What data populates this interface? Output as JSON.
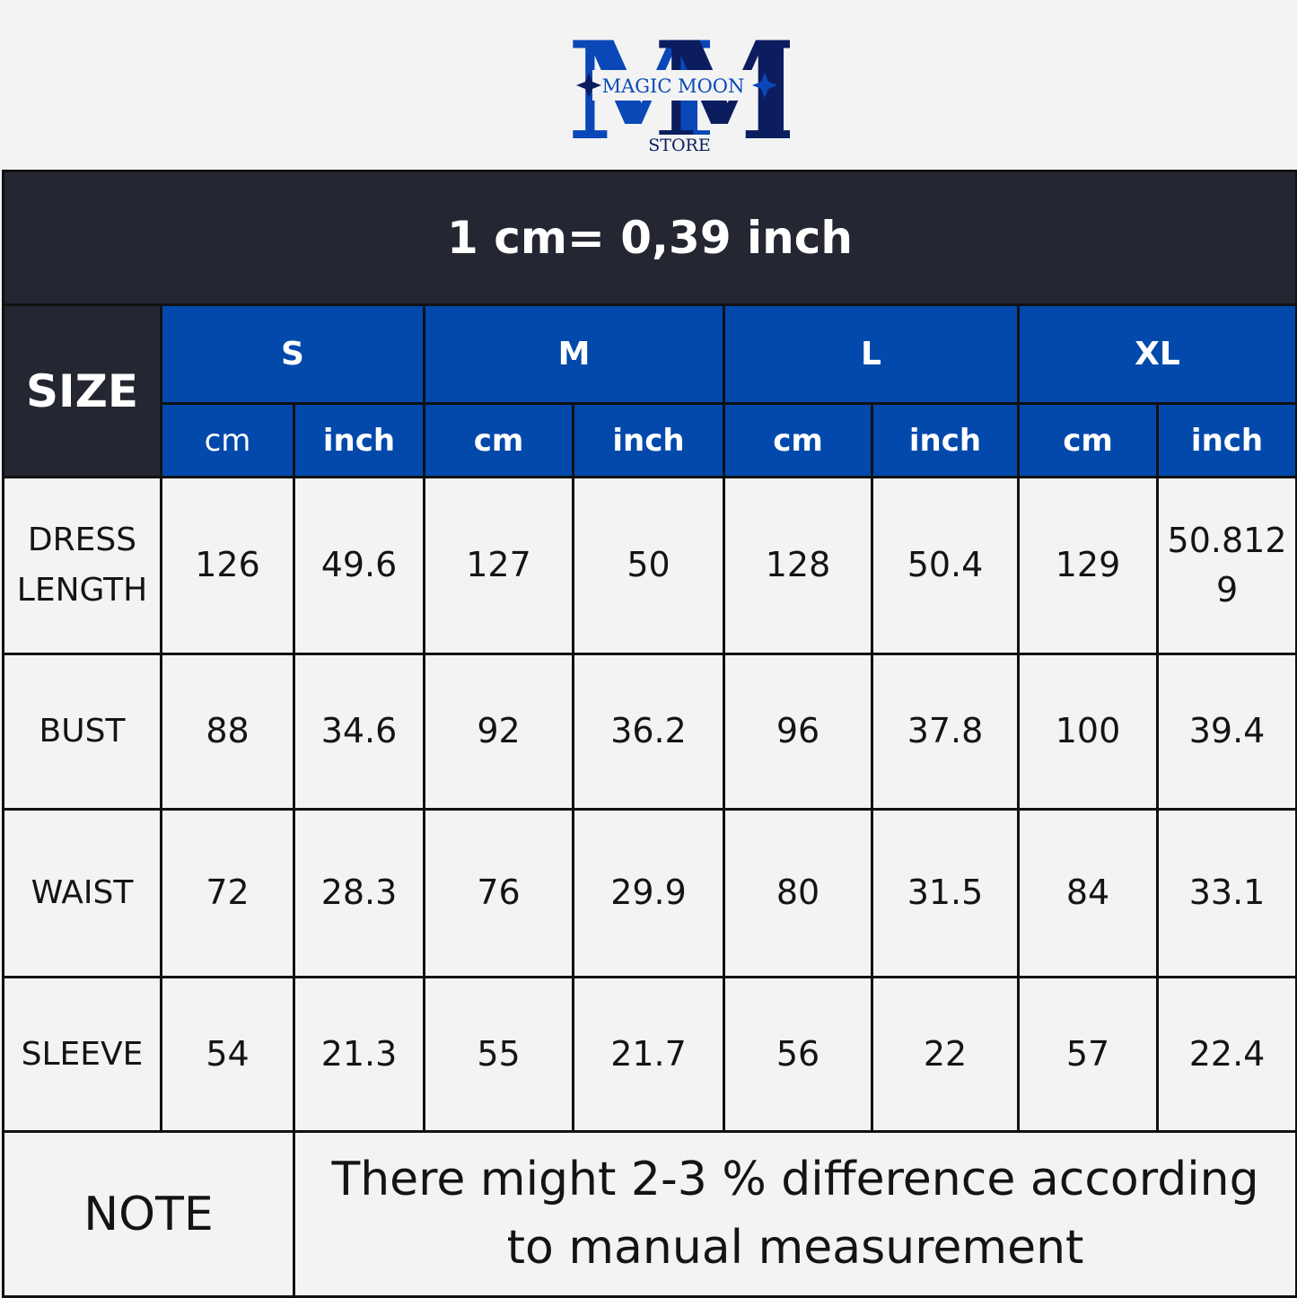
{
  "logo": {
    "brand_line": "MAGIC MOON",
    "store_line": "STORE",
    "colors": {
      "primary": "#0a48b8",
      "dark": "#0b1d5e"
    }
  },
  "conversion": "1 cm= 0,39 inch",
  "size_header": "SIZE",
  "sizes": [
    "S",
    "M",
    "L",
    "XL"
  ],
  "units": [
    "cm",
    "inch",
    "cm",
    "inch",
    "cm",
    "inch",
    "cm",
    "inch"
  ],
  "rows": [
    {
      "label": "DRESS LENGTH",
      "values": [
        "126",
        "49.6",
        "127",
        "50",
        "128",
        "50.4",
        "129",
        "50.8129"
      ]
    },
    {
      "label": "BUST",
      "values": [
        "88",
        "34.6",
        "92",
        "36.2",
        "96",
        "37.8",
        "100",
        "39.4"
      ]
    },
    {
      "label": "WAIST",
      "values": [
        "72",
        "28.3",
        "76",
        "29.9",
        "80",
        "31.5",
        "84",
        "33.1"
      ]
    },
    {
      "label": "SLEEVE",
      "values": [
        "54",
        "21.3",
        "55",
        "21.7",
        "56",
        "22",
        "57",
        "22.4"
      ]
    }
  ],
  "note": {
    "label": "NOTE",
    "text": "There might 2-3 % difference according to manual measurement"
  },
  "colors": {
    "header_dark": "#242732",
    "header_blue": "#0249ab",
    "background": "#f3f3f3",
    "border": "#111111"
  }
}
